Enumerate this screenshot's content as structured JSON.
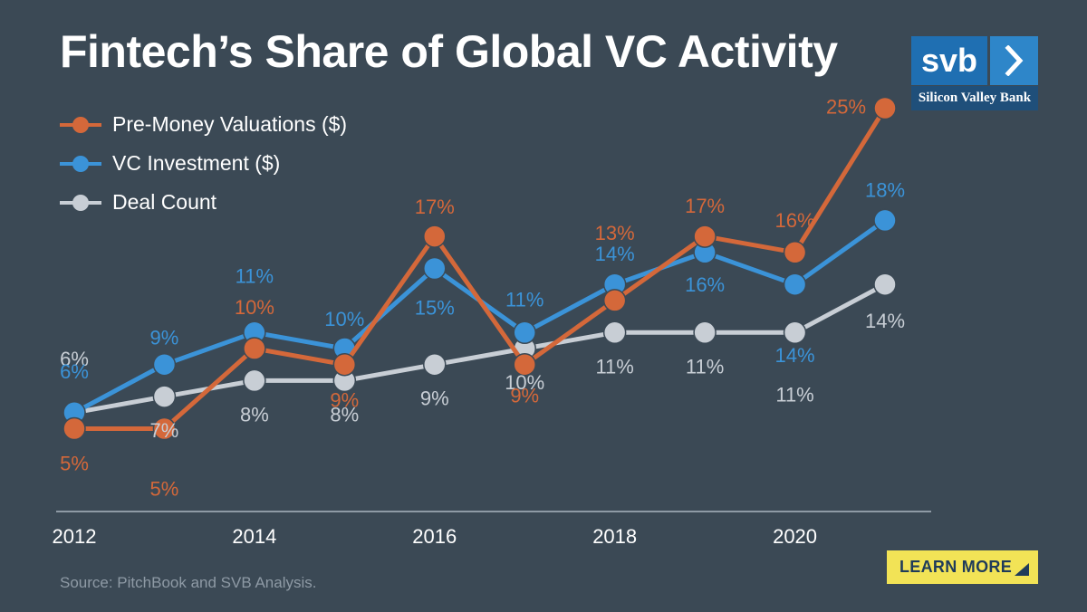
{
  "title": "Fintech’s Share of Global VC Activity",
  "logo": {
    "mark": "svb",
    "icon": "chevron-right-icon",
    "name": "Silicon Valley Bank"
  },
  "source": "Source: PitchBook and SVB Analysis.",
  "cta": {
    "label": "LEARN MORE",
    "icon": "corner-triangle-icon"
  },
  "colors": {
    "background": "#3b4955",
    "pre_money": "#d4683a",
    "vc_investment": "#3b93d8",
    "deal_count": "#c8ced5",
    "axis": "#8e9aa5",
    "cta_bg": "#f2e356",
    "logo_blue": "#1f6fb2"
  },
  "chart_data": {
    "type": "line",
    "title": "Fintech’s Share of Global VC Activity",
    "xlabel": "",
    "ylabel": "",
    "x": [
      2012,
      2013,
      2014,
      2015,
      2016,
      2017,
      2018,
      2019,
      2020,
      2021
    ],
    "xticks": [
      "2012",
      "2014",
      "2016",
      "2018",
      "2020"
    ],
    "ylim": [
      0,
      30
    ],
    "grid": false,
    "legend": "top-left",
    "series": [
      {
        "key": "deal_count",
        "name": "Deal Count",
        "values": [
          6,
          7,
          8,
          8,
          9,
          10,
          11,
          11,
          11,
          14
        ],
        "labels": [
          "6%",
          "7%",
          "8%",
          "8%",
          "9%",
          "10%",
          "11%",
          "11%",
          "11%",
          "14%"
        ]
      },
      {
        "key": "vc_investment",
        "name": "VC Investment ($)",
        "values": [
          6,
          9,
          11,
          10,
          15,
          11,
          14,
          16,
          14,
          18
        ],
        "labels": [
          "6%",
          "9%",
          "11%",
          "10%",
          "15%",
          "11%",
          "14%",
          "16%",
          "14%",
          "18%"
        ]
      },
      {
        "key": "pre_money",
        "name": "Pre-Money Valuations ($)",
        "values": [
          5,
          5,
          10,
          9,
          17,
          9,
          13,
          17,
          16,
          25
        ],
        "labels": [
          "5%",
          "5%",
          "10%",
          "9%",
          "17%",
          "9%",
          "13%",
          "17%",
          "16%",
          "25%"
        ]
      }
    ]
  }
}
